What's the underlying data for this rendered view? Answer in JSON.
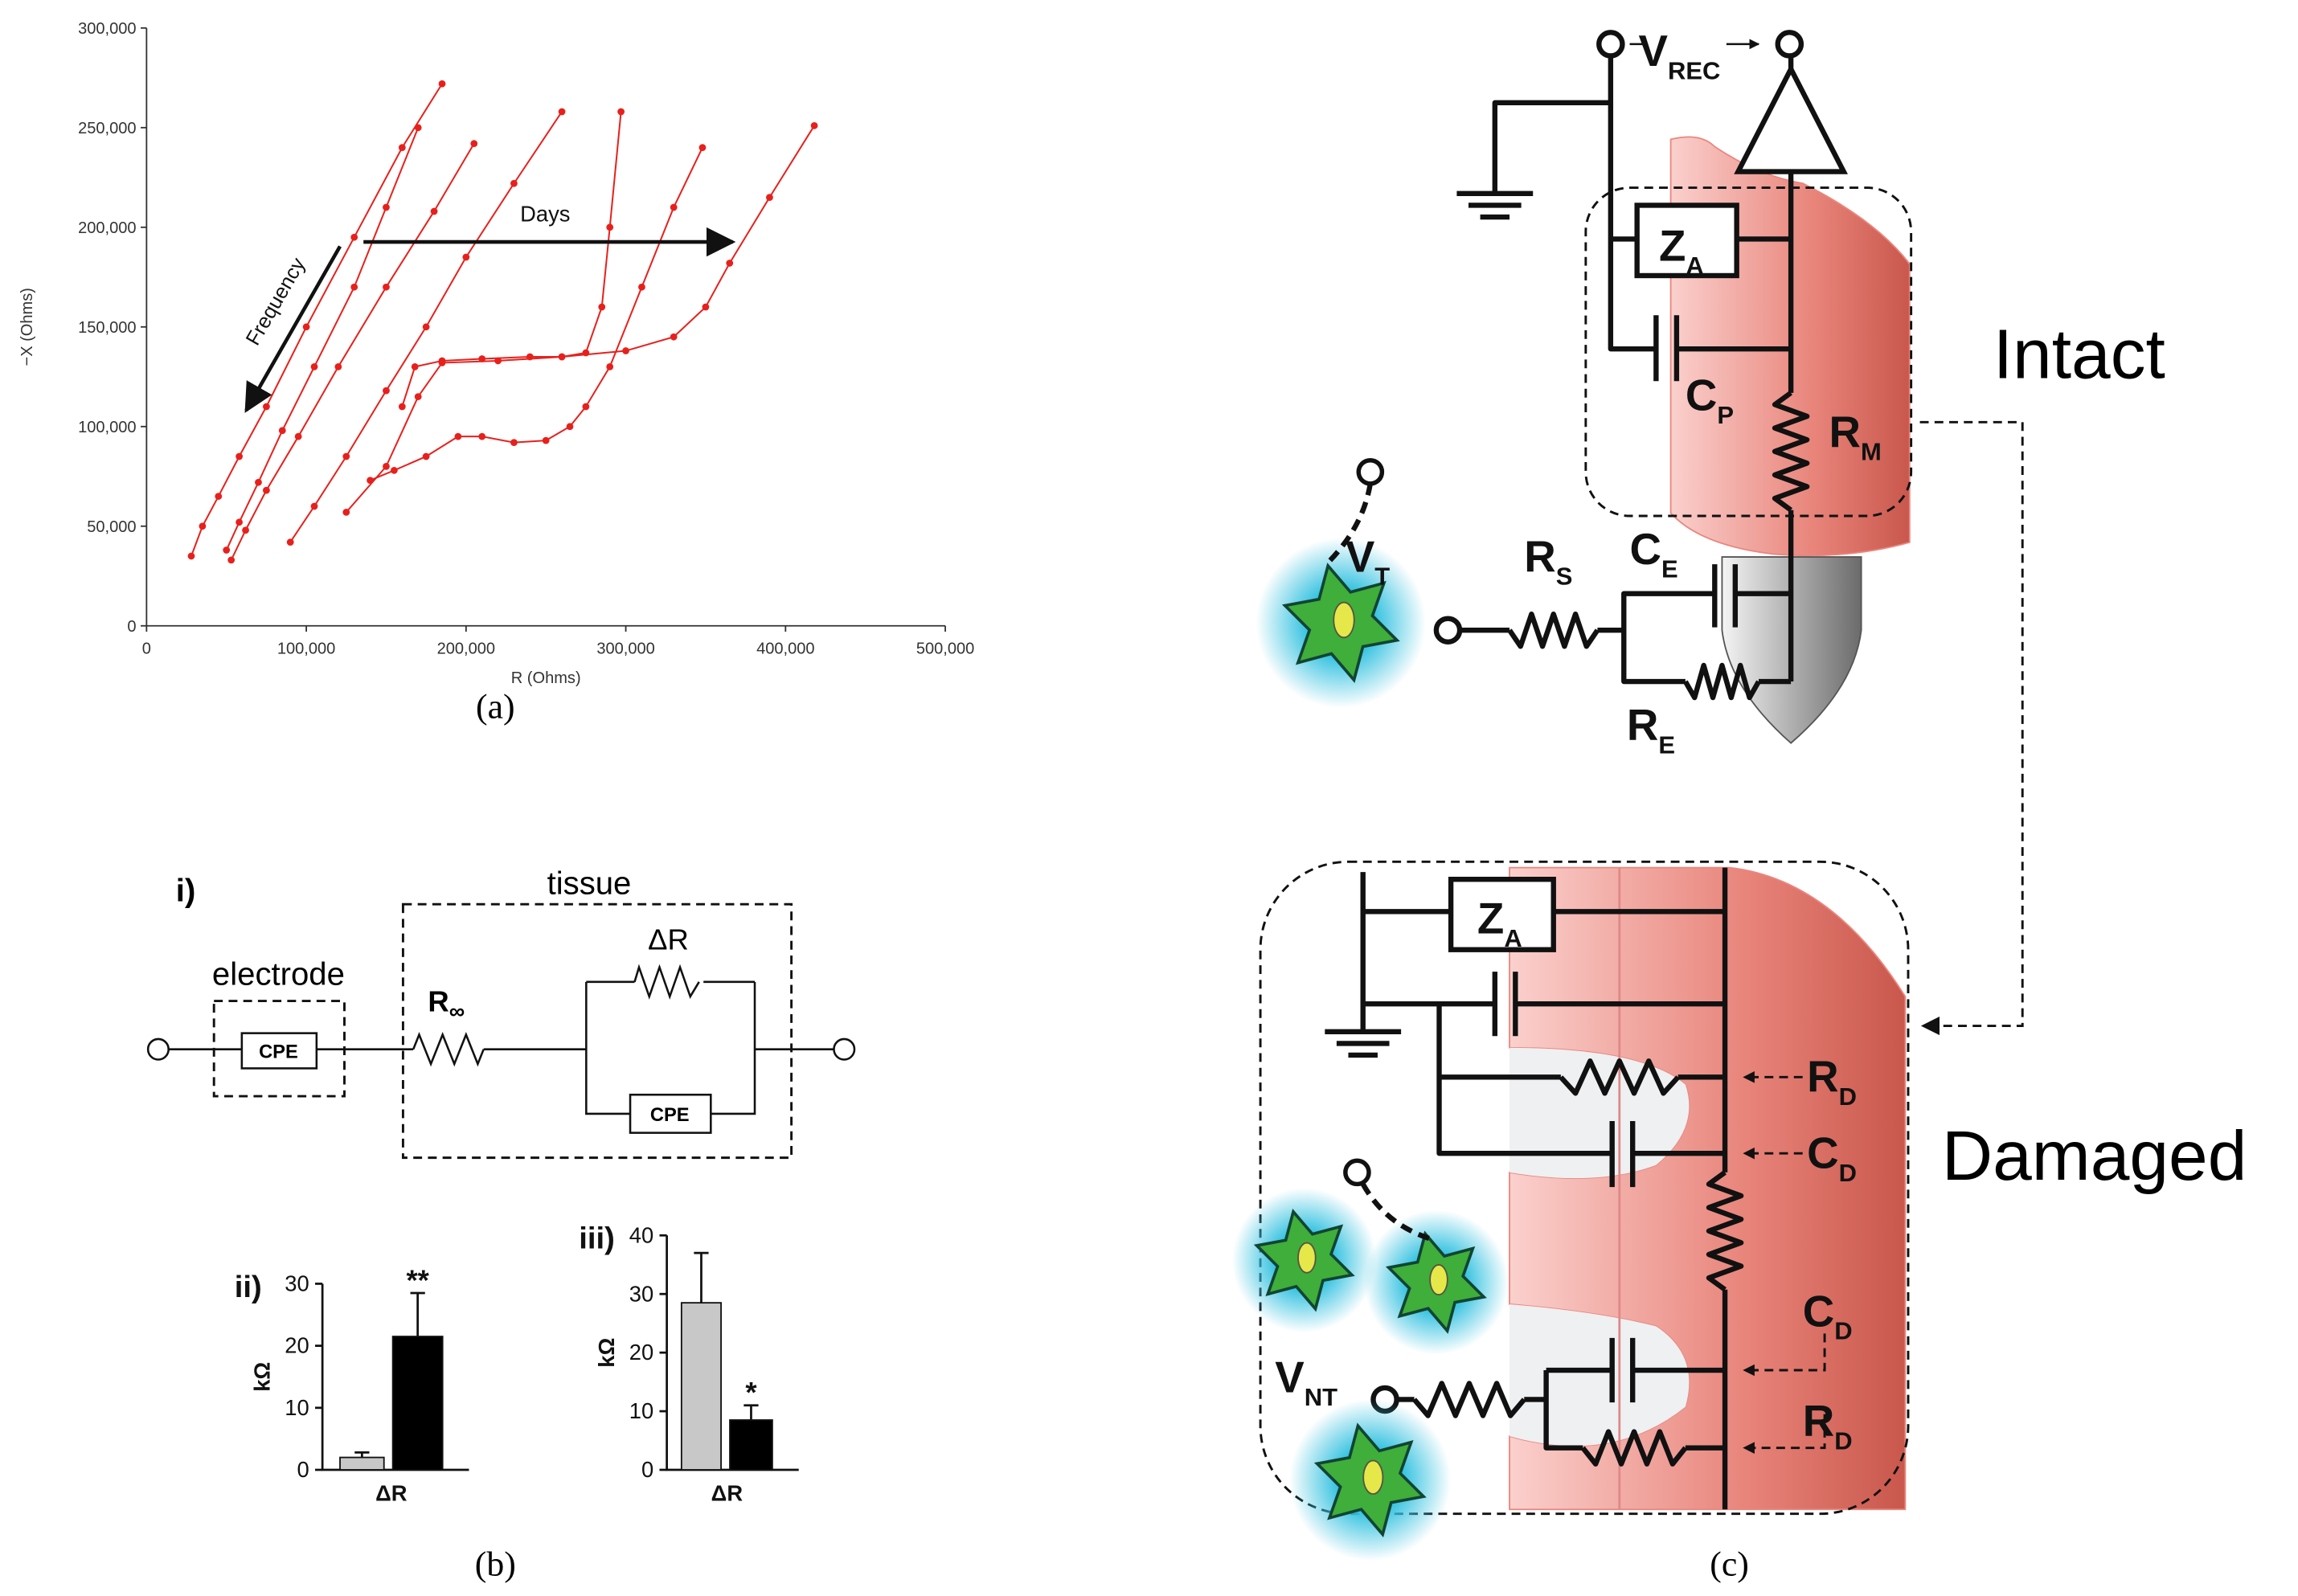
{
  "panel_labels": [
    "(a)",
    "(b)",
    "(c)"
  ],
  "chart_data": [
    {
      "type": "line",
      "xlabel": "R (Ohms)",
      "ylabel": "−X (Ohms)",
      "color": "#e8201c",
      "xlim": [
        0,
        500000
      ],
      "ylim": [
        0,
        300000
      ],
      "xticks": [
        0,
        {
          "value": 100000,
          "label": "100,000"
        },
        {
          "value": 200000,
          "label": "200,000"
        },
        {
          "value": 300000,
          "label": "300,000"
        },
        {
          "value": 400000,
          "label": "400,000"
        },
        {
          "value": 500000,
          "label": "500,000"
        }
      ],
      "yticks": [
        0,
        {
          "value": 50000,
          "label": "50,000"
        },
        {
          "value": 100000,
          "label": "100,000"
        },
        {
          "value": 150000,
          "label": "150,000"
        },
        {
          "value": 200000,
          "label": "200,000"
        },
        {
          "value": 250000,
          "label": "250,000"
        },
        {
          "value": 300000,
          "label": "300,000"
        }
      ],
      "series": [
        {
          "x": [
            28000,
            35000,
            45000,
            58000,
            75000,
            100000,
            130000,
            160000,
            185000
          ],
          "values": [
            35000,
            50000,
            65000,
            85000,
            110000,
            150000,
            195000,
            240000,
            272000
          ]
        },
        {
          "x": [
            50000,
            58000,
            70000,
            85000,
            105000,
            130000,
            150000,
            170000
          ],
          "values": [
            38000,
            52000,
            72000,
            98000,
            130000,
            170000,
            210000,
            250000
          ]
        },
        {
          "x": [
            53000,
            62000,
            75000,
            95000,
            120000,
            150000,
            180000,
            205000
          ],
          "values": [
            33000,
            48000,
            68000,
            95000,
            130000,
            170000,
            208000,
            242000
          ]
        },
        {
          "x": [
            90000,
            105000,
            125000,
            150000,
            175000,
            200000,
            230000,
            260000
          ],
          "values": [
            42000,
            60000,
            85000,
            118000,
            150000,
            185000,
            222000,
            258000
          ]
        },
        {
          "x": [
            160000,
            168000,
            185000,
            210000,
            240000,
            260000,
            275000,
            285000,
            290000,
            297000
          ],
          "values": [
            110000,
            130000,
            133000,
            134000,
            135000,
            135000,
            137000,
            160000,
            200000,
            258000
          ]
        },
        {
          "x": [
            140000,
            155000,
            175000,
            195000,
            210000,
            230000,
            250000,
            265000,
            275000,
            290000,
            310000,
            330000,
            348000
          ],
          "values": [
            73000,
            78000,
            85000,
            95000,
            95000,
            92000,
            93000,
            100000,
            110000,
            130000,
            170000,
            210000,
            240000
          ]
        },
        {
          "x": [
            125000,
            150000,
            170000,
            185000,
            220000,
            260000,
            300000,
            330000,
            350000,
            365000,
            390000,
            418000
          ],
          "values": [
            57000,
            80000,
            115000,
            132000,
            133000,
            135000,
            138000,
            145000,
            160000,
            182000,
            215000,
            251000
          ]
        }
      ],
      "annotations": [
        "Days",
        "Frequency"
      ]
    },
    {
      "type": "bar",
      "label": "ii)",
      "xlabel": "ΔR",
      "ylabel": "kΩ",
      "ylim": [
        0,
        30
      ],
      "yticks": [
        0,
        10,
        20,
        30
      ],
      "values": [
        2,
        21.5
      ],
      "errors": [
        0.8,
        7
      ],
      "colors": [
        "#c8c8c8",
        "#000000"
      ],
      "significance": [
        null,
        "**"
      ]
    },
    {
      "type": "bar",
      "label": "iii)",
      "xlabel": "ΔR",
      "ylabel": "kΩ",
      "ylim": [
        0,
        40
      ],
      "yticks": [
        0,
        10,
        20,
        30,
        40
      ],
      "values": [
        28.5,
        8.5
      ],
      "errors": [
        8.5,
        2.5
      ],
      "colors": [
        "#c8c8c8",
        "#000000"
      ],
      "significance": [
        null,
        "*"
      ]
    }
  ],
  "circuit_b": {
    "label": "i)",
    "tissue": "tissue",
    "electrode": "electrode",
    "cpe_electrode": "CPE",
    "r_inf": {
      "main": "R",
      "sub": "∞"
    },
    "delta_r": "ΔR",
    "cpe_tissue": "CPE"
  },
  "circuit_c": {
    "v_rec": {
      "main": "V",
      "sub": "REC"
    },
    "z_a_intact": {
      "main": "Z",
      "sub": "A"
    },
    "c_p": {
      "main": "C",
      "sub": "P"
    },
    "r_m": {
      "main": "R",
      "sub": "M"
    },
    "intact": "Intact",
    "v_t": {
      "main": "V",
      "sub": "T"
    },
    "r_s": {
      "main": "R",
      "sub": "S"
    },
    "c_e": {
      "main": "C",
      "sub": "E"
    },
    "r_e": {
      "main": "R",
      "sub": "E"
    },
    "z_a_damaged": {
      "main": "Z",
      "sub": "A"
    },
    "r_d_upper": {
      "main": "R",
      "sub": "D"
    },
    "c_d_upper": {
      "main": "C",
      "sub": "D"
    },
    "c_d_lower": {
      "main": "C",
      "sub": "D"
    },
    "r_d_lower": {
      "main": "R",
      "sub": "D"
    },
    "damaged": "Damaged",
    "v_nt": {
      "main": "V",
      "sub": "NT"
    }
  }
}
